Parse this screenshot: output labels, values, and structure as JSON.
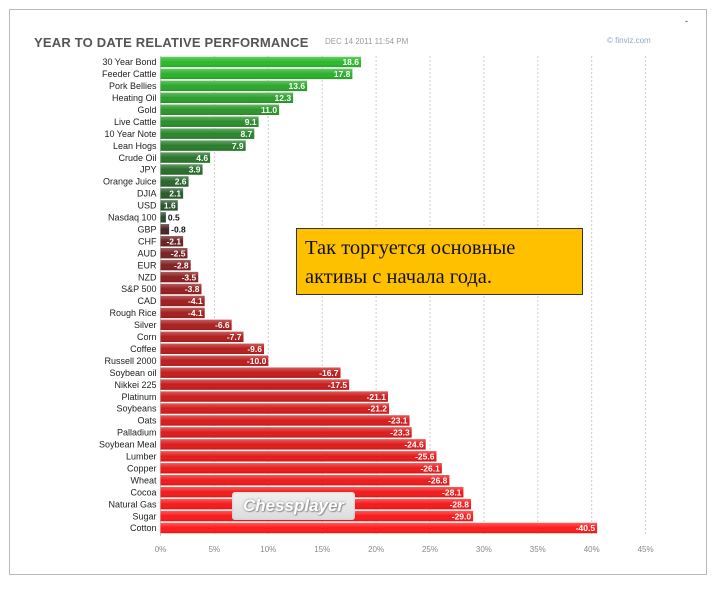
{
  "header": {
    "title": "YEAR TO DATE RELATIVE PERFORMANCE",
    "date": "DEC 14 2011 11:54 PM",
    "source": "© finviz.com",
    "corner_mark": "-"
  },
  "callout": {
    "line1": "Так торгуется основные",
    "line2": "активы с начала года."
  },
  "watermark": "Chessplayer",
  "colors": {
    "positive_top": "#2db82d",
    "positive_bottom": "#264d2a",
    "negative_top": "#4a2424",
    "negative_bottom": "#ff1a1a",
    "grid": "#cccccc"
  },
  "chart_data": {
    "type": "bar",
    "orientation": "horizontal",
    "title": "YEAR TO DATE RELATIVE PERFORMANCE",
    "categories": [
      "30 Year Bond",
      "Feeder Cattle",
      "Pork Bellies",
      "Heating Oil",
      "Gold",
      "Live Cattle",
      "10 Year Note",
      "Lean Hogs",
      "Crude Oil",
      "JPY",
      "Orange Juice",
      "DJIA",
      "USD",
      "Nasdaq 100",
      "GBP",
      "CHF",
      "AUD",
      "EUR",
      "NZD",
      "S&P 500",
      "CAD",
      "Rough Rice",
      "Silver",
      "Corn",
      "Coffee",
      "Russell 2000",
      "Soybean oil",
      "Nikkei 225",
      "Platinum",
      "Soybeans",
      "Oats",
      "Palladium",
      "Soybean Meal",
      "Lumber",
      "Copper",
      "Wheat",
      "Cocoa",
      "Natural Gas",
      "Sugar",
      "Cotton"
    ],
    "values": [
      18.6,
      17.8,
      13.6,
      12.3,
      11.0,
      9.1,
      8.7,
      7.9,
      4.6,
      3.9,
      2.6,
      2.1,
      1.6,
      0.5,
      -0.8,
      -2.1,
      -2.5,
      -2.8,
      -3.5,
      -3.8,
      -4.1,
      -4.1,
      -6.6,
      -7.7,
      -9.6,
      -10.0,
      -16.7,
      -17.5,
      -21.1,
      -21.2,
      -23.1,
      -23.3,
      -24.6,
      -25.6,
      -26.1,
      -26.8,
      -28.1,
      -28.8,
      -29.0,
      -40.5
    ],
    "value_labels": [
      "18.6",
      "17.8",
      "13.6",
      "12.3",
      "11.0",
      "9.1",
      "8.7",
      "7.9",
      "4.6",
      "3.9",
      "2.6",
      "2.1",
      "1.6",
      "0.5",
      "-0.8",
      "-2.1",
      "-2.5",
      "-2.8",
      "-3.5",
      "-3.8",
      "-4.1",
      "-4.1",
      "-6.6",
      "-7.7",
      "-9.6",
      "-10.0",
      "-16.7",
      "-17.5",
      "-21.1",
      "-21.2",
      "-23.1",
      "-23.3",
      "-24.6",
      "-25.6",
      "-26.1",
      "-26.8",
      "-28.1",
      "-28.8",
      "-29.0",
      "-40.5"
    ],
    "bar_length": "absolute value",
    "xlim": [
      0,
      45
    ],
    "xticks": [
      "0%",
      "5%",
      "10%",
      "15%",
      "20%",
      "25%",
      "30%",
      "35%",
      "40%",
      "45%"
    ],
    "grid": true,
    "legend": "none"
  }
}
